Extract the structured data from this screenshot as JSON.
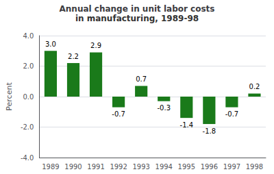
{
  "chart_data": {
    "type": "bar",
    "title": "Annual change in unit labor costs",
    "subtitle": "in manufacturing, 1989-98",
    "ylabel": "Percent",
    "categories": [
      "1989",
      "1990",
      "1991",
      "1992",
      "1993",
      "1994",
      "1995",
      "1996",
      "1997",
      "1998"
    ],
    "values": [
      3.0,
      2.2,
      2.9,
      -0.7,
      0.7,
      -0.3,
      -1.4,
      -1.8,
      -0.7,
      0.2
    ],
    "value_labels": [
      "3.0",
      "2.2",
      "2.9",
      "-0.7",
      "0.7",
      "-0.3",
      "-1.4",
      "-1.8",
      "-0.7",
      "0.2"
    ],
    "color": "#1a7a1a",
    "ylim": [
      -4.0,
      4.0
    ],
    "yticks": [
      {
        "value": -4.0,
        "label": "-4.0"
      },
      {
        "value": -2.0,
        "label": "-2.0"
      },
      {
        "value": 0.0,
        "label": "0.0"
      },
      {
        "value": 2.0,
        "label": "2.0"
      },
      {
        "value": 4.0,
        "label": "4.0"
      }
    ],
    "grid": true,
    "data_labels": true
  }
}
